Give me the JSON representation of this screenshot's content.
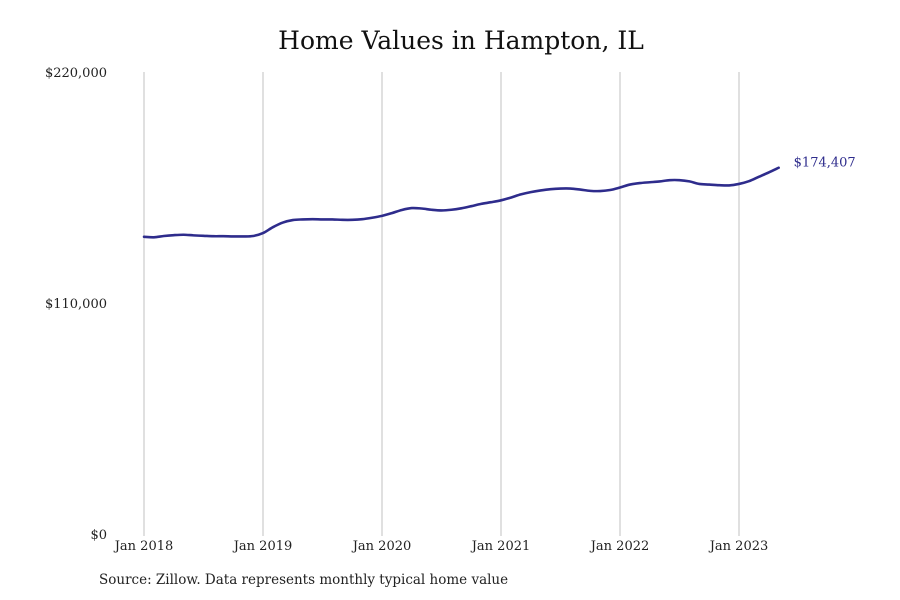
{
  "chart_data": {
    "type": "line",
    "title": "Home Values in Hampton, IL",
    "xlabel": "",
    "ylabel": "",
    "ylim": [
      0,
      220000
    ],
    "y_ticks": [
      {
        "value": 0,
        "label": "$0"
      },
      {
        "value": 110000,
        "label": "$110,000"
      },
      {
        "value": 220000,
        "label": "$220,000"
      }
    ],
    "x_ticks": [
      {
        "value": 2018.0,
        "label": "Jan 2018"
      },
      {
        "value": 2019.0,
        "label": "Jan 2019"
      },
      {
        "value": 2020.0,
        "label": "Jan 2020"
      },
      {
        "value": 2021.0,
        "label": "Jan 2021"
      },
      {
        "value": 2022.0,
        "label": "Jan 2022"
      },
      {
        "value": 2023.0,
        "label": "Jan 2023"
      }
    ],
    "xlim": [
      2018.0,
      2023.333
    ],
    "grid": "vertical",
    "line_color": "#2e2c8c",
    "grid_color": "#c0c0c0",
    "series": [
      {
        "x": [
          "2018-01",
          "2018-02",
          "2018-03",
          "2018-04",
          "2018-05",
          "2018-06",
          "2018-07",
          "2018-08",
          "2018-09",
          "2018-10",
          "2018-11",
          "2018-12",
          "2019-01",
          "2019-02",
          "2019-03",
          "2019-04",
          "2019-05",
          "2019-06",
          "2019-07",
          "2019-08",
          "2019-09",
          "2019-10",
          "2019-11",
          "2019-12",
          "2020-01",
          "2020-02",
          "2020-03",
          "2020-04",
          "2020-05",
          "2020-06",
          "2020-07",
          "2020-08",
          "2020-09",
          "2020-10",
          "2020-11",
          "2020-12",
          "2021-01",
          "2021-02",
          "2021-03",
          "2021-04",
          "2021-05",
          "2021-06",
          "2021-07",
          "2021-08",
          "2021-09",
          "2021-10",
          "2021-11",
          "2021-12",
          "2022-01",
          "2022-02",
          "2022-03",
          "2022-04",
          "2022-05",
          "2022-06",
          "2022-07",
          "2022-08",
          "2022-09",
          "2022-10",
          "2022-11",
          "2022-12",
          "2023-01",
          "2023-02",
          "2023-03",
          "2023-04",
          "2023-05"
        ],
        "values": [
          141500,
          141300,
          141900,
          142300,
          142500,
          142200,
          142000,
          141800,
          141800,
          141700,
          141700,
          141900,
          143300,
          146100,
          148300,
          149500,
          149800,
          149900,
          149800,
          149800,
          149600,
          149600,
          149900,
          150600,
          151500,
          152800,
          154300,
          155200,
          155000,
          154400,
          154100,
          154400,
          155100,
          156100,
          157200,
          158000,
          158900,
          160200,
          161700,
          162800,
          163600,
          164200,
          164500,
          164500,
          164000,
          163400,
          163300,
          163800,
          165000,
          166400,
          167100,
          167500,
          167900,
          168500,
          168500,
          167900,
          166700,
          166400,
          166100,
          166000,
          166700,
          168000,
          170100,
          172200,
          174407
        ]
      }
    ],
    "end_label": "$174,407"
  },
  "footer": {
    "source": "Source: Zillow. Data represents monthly typical home value"
  }
}
